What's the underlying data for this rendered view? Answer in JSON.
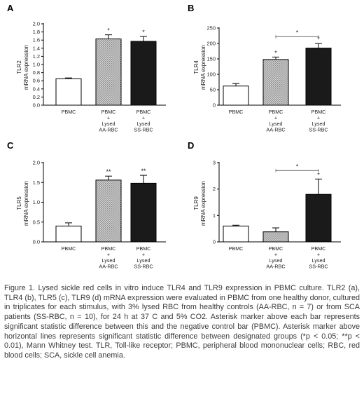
{
  "chart_data": [
    {
      "type": "bar",
      "panel_letter": "A",
      "ylabel_lines": [
        "TLR2",
        "mRNA expression"
      ],
      "yticks": [
        "0.0",
        "0.2",
        "0.4",
        "0.6",
        "0.8",
        "1.0",
        "1.2",
        "1.4",
        "1.6",
        "1.8",
        "2.0"
      ],
      "ylim": [
        0,
        2.0
      ],
      "categories": [
        [
          "PBMC"
        ],
        [
          "PBMC",
          "+",
          "Lysed",
          "AA-RBC"
        ],
        [
          "PBMC",
          "+",
          "Lysed",
          "SS-RBC"
        ]
      ],
      "values": [
        0.65,
        1.63,
        1.57
      ],
      "errors": [
        0.02,
        0.1,
        0.12
      ],
      "bar_styles": [
        "white",
        "hatched",
        "black"
      ],
      "bar_stars": [
        "",
        "*",
        "*"
      ],
      "comparisons": []
    },
    {
      "type": "bar",
      "panel_letter": "B",
      "ylabel_lines": [
        "TLR4",
        "mRNA expression"
      ],
      "yticks": [
        "0",
        "50",
        "100",
        "150",
        "200",
        "250"
      ],
      "ylim": [
        0,
        250
      ],
      "categories": [
        [
          "PBMC"
        ],
        [
          "PBMC",
          "+",
          "Lysed",
          "AA-RBC"
        ],
        [
          "PBMC",
          "+",
          "Lysed",
          "SS-RBC"
        ]
      ],
      "values": [
        62,
        148,
        185
      ],
      "errors": [
        8,
        8,
        15
      ],
      "bar_styles": [
        "white",
        "hatched",
        "black"
      ],
      "bar_stars": [
        "",
        "*",
        "*"
      ],
      "comparisons": [
        {
          "from": 1,
          "to": 2,
          "level": 222,
          "label": "*"
        }
      ]
    },
    {
      "type": "bar",
      "panel_letter": "C",
      "ylabel_lines": [
        "TLR5",
        "mRNA expression"
      ],
      "yticks": [
        "0.0",
        "0.5",
        "1.0",
        "1.5",
        "2.0"
      ],
      "ylim": [
        0,
        2.0
      ],
      "categories": [
        [
          "PBMC"
        ],
        [
          "PBMC",
          "+",
          "Lysed",
          "AA-RBC"
        ],
        [
          "PBMC",
          "+",
          "Lysed",
          "SS-RBC"
        ]
      ],
      "values": [
        0.4,
        1.56,
        1.48
      ],
      "errors": [
        0.08,
        0.1,
        0.2
      ],
      "bar_styles": [
        "white",
        "hatched",
        "black"
      ],
      "bar_stars": [
        "",
        "**",
        "**"
      ],
      "comparisons": []
    },
    {
      "type": "bar",
      "panel_letter": "D",
      "ylabel_lines": [
        "TLR9",
        "mRNA expression"
      ],
      "yticks": [
        "0",
        "1",
        "2",
        "3"
      ],
      "ylim": [
        0,
        3
      ],
      "categories": [
        [
          "PBMC"
        ],
        [
          "PBMC",
          "+",
          "Lysed",
          "AA-RBC"
        ],
        [
          "PBMC",
          "+",
          "Lysed",
          "SS-RBC"
        ]
      ],
      "values": [
        0.6,
        0.38,
        1.8
      ],
      "errors": [
        0.03,
        0.15,
        0.58
      ],
      "bar_styles": [
        "white",
        "hatched",
        "black"
      ],
      "bar_stars": [
        "",
        "",
        "*"
      ],
      "comparisons": [
        {
          "from": 1,
          "to": 2,
          "level": 2.7,
          "label": "*"
        }
      ]
    }
  ],
  "caption": "Figure 1. Lysed sickle red cells in vitro induce TLR4 and TLR9 expression in PBMC culture. TLR2 (a), TLR4 (b), TLR5 (c), TLR9 (d) mRNA expression were evaluated in PBMC from one healthy donor, cultured in triplicates for each stimulus, with 3% lysed RBC from healthy controls (AA-RBC, n = 7) or from SCA patients (SS-RBC, n = 10), for 24 h at 37 C and 5% CO2. Asterisk marker above each bar represents significant statistic difference between this and the negative control bar (PBMC). Asterisk marker above horizontal lines represents significant statistic difference between designated groups (*p < 0.05; **p < 0.01), Mann Whitney test. TLR, Toll-like receptor; PBMC, peripheral blood mononuclear cells; RBC, red blood cells; SCA, sickle cell anemia."
}
